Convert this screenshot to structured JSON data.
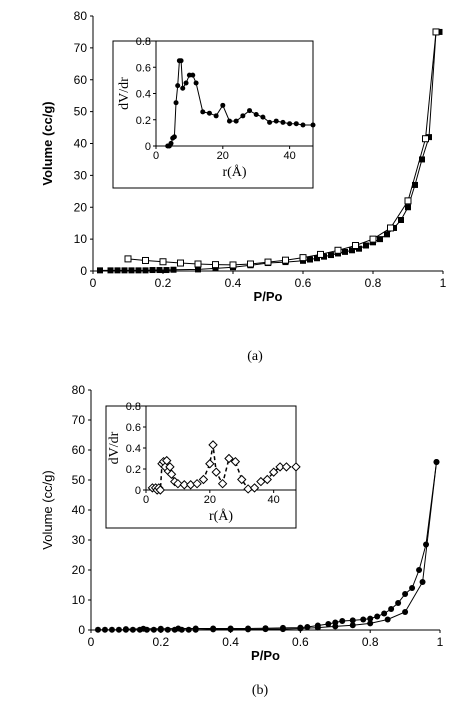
{
  "chart_data": [
    {
      "type": "scatter",
      "panel": "a",
      "caption": "(a)",
      "xlabel": "P/Po",
      "ylabel": "Volume  (cc/g)",
      "xlim": [
        0,
        1
      ],
      "ylim": [
        0,
        80
      ],
      "xticks": [
        0,
        0.2,
        0.4,
        0.6,
        0.8,
        1
      ],
      "xtick_labels": [
        "0",
        "0.2",
        "0.4",
        "0.6",
        "0.8",
        "1"
      ],
      "yticks": [
        0,
        10,
        20,
        30,
        40,
        50,
        60,
        70,
        80
      ],
      "ytick_labels": [
        "0",
        "10",
        "20",
        "30",
        "40",
        "50",
        "60",
        "70",
        "80"
      ],
      "grid": false,
      "series": [
        {
          "marker": "filled-square",
          "x": [
            0.02,
            0.05,
            0.07,
            0.09,
            0.11,
            0.13,
            0.15,
            0.17,
            0.19,
            0.21,
            0.23,
            0.3,
            0.35,
            0.4,
            0.45,
            0.5,
            0.55,
            0.6,
            0.62,
            0.64,
            0.66,
            0.68,
            0.7,
            0.72,
            0.74,
            0.76,
            0.78,
            0.8,
            0.82,
            0.84,
            0.86,
            0.88,
            0.9,
            0.92,
            0.94,
            0.96,
            0.98,
            0.99
          ],
          "y": [
            0.2,
            0.2,
            0.2,
            0.2,
            0.2,
            0.2,
            0.2,
            0.3,
            0.3,
            0.3,
            0.4,
            0.5,
            0.8,
            1.2,
            1.8,
            2.5,
            2.8,
            3.2,
            3.6,
            4.0,
            4.5,
            5.0,
            5.5,
            6.0,
            6.5,
            7.0,
            8.0,
            9.0,
            10.0,
            11.5,
            13.5,
            16.0,
            20.0,
            27.0,
            35.0,
            42.0,
            75.0,
            75.0
          ]
        },
        {
          "marker": "open-square",
          "x": [
            0.1,
            0.15,
            0.2,
            0.25,
            0.3,
            0.35,
            0.4,
            0.45,
            0.5,
            0.55,
            0.6,
            0.65,
            0.7,
            0.75,
            0.8,
            0.85,
            0.9,
            0.95,
            0.98
          ],
          "y": [
            3.8,
            3.3,
            2.9,
            2.5,
            2.2,
            2.0,
            1.9,
            2.2,
            2.8,
            3.4,
            4.2,
            5.2,
            6.5,
            8.0,
            10.0,
            13.5,
            22.0,
            41.5,
            75.0
          ]
        }
      ],
      "inset": {
        "type": "line",
        "xlabel": "r(Å)",
        "ylabel": "dV/dr",
        "xlim": [
          0,
          47
        ],
        "ylim": [
          0,
          0.8
        ],
        "xticks": [
          0,
          20,
          40
        ],
        "xtick_labels": [
          "0",
          "20",
          "40"
        ],
        "yticks": [
          0,
          0.2,
          0.4,
          0.6,
          0.8
        ],
        "ytick_labels": [
          "0",
          "0.2",
          "0.4",
          "0.6",
          "0.8"
        ],
        "series": [
          {
            "marker": "filled-circle",
            "x": [
              3.5,
              4,
              4.5,
              5,
              5.5,
              6,
              6.5,
              7,
              7.5,
              8,
              9,
              10,
              11,
              12,
              14,
              16,
              18,
              20,
              22,
              24,
              26,
              28,
              30,
              32,
              34,
              36,
              38,
              40,
              42,
              44,
              47
            ],
            "y": [
              0.0,
              0.0,
              0.02,
              0.06,
              0.07,
              0.33,
              0.46,
              0.65,
              0.65,
              0.44,
              0.48,
              0.54,
              0.54,
              0.48,
              0.26,
              0.25,
              0.23,
              0.31,
              0.19,
              0.19,
              0.23,
              0.27,
              0.24,
              0.22,
              0.18,
              0.19,
              0.18,
              0.17,
              0.17,
              0.16,
              0.16
            ]
          }
        ]
      }
    },
    {
      "type": "scatter",
      "panel": "b",
      "caption": "(b)",
      "xlabel": "P/Po",
      "ylabel": "Volume   (cc/g)",
      "xlim": [
        0,
        1
      ],
      "ylim": [
        0,
        80
      ],
      "xticks": [
        0,
        0.2,
        0.4,
        0.6,
        0.8,
        1
      ],
      "xtick_labels": [
        "0",
        "0.2",
        "0.4",
        "0.6",
        "0.8",
        "1"
      ],
      "yticks": [
        0,
        10,
        20,
        30,
        40,
        50,
        60,
        70,
        80
      ],
      "ytick_labels": [
        "0",
        "10",
        "20",
        "30",
        "40",
        "50",
        "60",
        "70",
        "80"
      ],
      "grid": false,
      "series": [
        {
          "marker": "filled-circle",
          "x": [
            0.02,
            0.04,
            0.06,
            0.08,
            0.1,
            0.12,
            0.14,
            0.16,
            0.18,
            0.2,
            0.22,
            0.24,
            0.26,
            0.28,
            0.3,
            0.35,
            0.4,
            0.45,
            0.5,
            0.55,
            0.6,
            0.65,
            0.7,
            0.75,
            0.8,
            0.85,
            0.9,
            0.95,
            0.99
          ],
          "y": [
            0.1,
            0.1,
            0.1,
            0.1,
            0.1,
            0.1,
            0.1,
            0.1,
            0.1,
            0.1,
            0.1,
            0.1,
            0.1,
            0.1,
            0.1,
            0.2,
            0.2,
            0.2,
            0.3,
            0.3,
            0.5,
            0.8,
            1.2,
            1.6,
            2.2,
            3.5,
            6.0,
            16.0,
            56.0
          ]
        },
        {
          "marker": "filled-circle",
          "x": [
            0.1,
            0.15,
            0.2,
            0.25,
            0.3,
            0.35,
            0.4,
            0.45,
            0.5,
            0.55,
            0.6,
            0.62,
            0.65,
            0.68,
            0.7,
            0.72,
            0.75,
            0.78,
            0.8,
            0.82,
            0.84,
            0.86,
            0.88,
            0.9,
            0.92,
            0.94,
            0.96,
            0.99
          ],
          "y": [
            0.3,
            0.4,
            0.4,
            0.5,
            0.5,
            0.5,
            0.5,
            0.5,
            0.6,
            0.7,
            0.8,
            1.0,
            1.5,
            2.0,
            2.5,
            3.0,
            3.2,
            3.5,
            3.8,
            4.5,
            5.5,
            7.0,
            9.0,
            12.0,
            14.0,
            20.0,
            28.5,
            56.0
          ]
        }
      ],
      "inset": {
        "type": "line",
        "xlabel": "r(Å)",
        "ylabel": "dV/dr",
        "xlim": [
          0,
          47
        ],
        "ylim": [
          0,
          0.8
        ],
        "xticks": [
          0,
          20,
          40
        ],
        "xtick_labels": [
          "0",
          "20",
          "40"
        ],
        "yticks": [
          0,
          0.2,
          0.4,
          0.6,
          0.8
        ],
        "ytick_labels": [
          "0",
          "0.2",
          "0.4",
          "0.6",
          "0.8"
        ],
        "series": [
          {
            "marker": "open-diamond",
            "line": "dashed",
            "x": [
              2,
              3,
              3.5,
              4,
              4.5,
              5,
              5.5,
              6,
              6.5,
              7,
              7.5,
              8,
              9,
              10,
              12,
              14,
              16,
              18,
              20,
              21,
              22,
              24,
              26,
              28,
              30,
              32,
              34,
              36,
              38,
              40,
              42,
              44,
              47
            ],
            "y": [
              0.02,
              0.02,
              0.0,
              0.02,
              0.0,
              0.25,
              0.27,
              0.22,
              0.28,
              0.18,
              0.22,
              0.15,
              0.08,
              0.06,
              0.05,
              0.05,
              0.06,
              0.1,
              0.25,
              0.43,
              0.17,
              0.06,
              0.3,
              0.27,
              0.1,
              0.01,
              0.02,
              0.08,
              0.1,
              0.17,
              0.22,
              0.22,
              0.22
            ]
          }
        ]
      }
    }
  ]
}
